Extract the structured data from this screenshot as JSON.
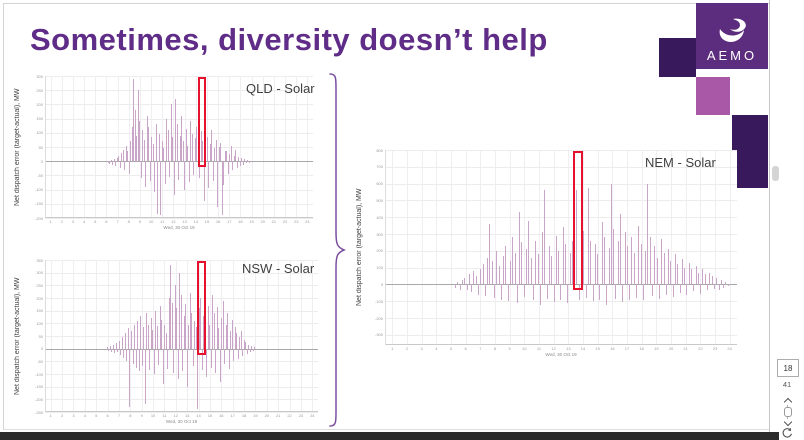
{
  "slide": {
    "title": "Sometimes, diversity doesn’t help"
  },
  "logo": {
    "text": "AEMO"
  },
  "colors": {
    "title": "#5f2c87",
    "bar": "#c9a5c8",
    "highlight": "#e8112d",
    "brace": "#7b4fa0",
    "logo_main": "#5c2d7e",
    "logo_dark": "#38195c",
    "logo_light": "#a958a8"
  },
  "icons": {
    "logo_mark": "aemo-swirl-icon",
    "scroll_up": "chevron-up-icon",
    "scroll_down": "chevron-down-icon",
    "refresh": "refresh-icon"
  },
  "sidebar": {
    "page_current": "18",
    "page_total": "41"
  },
  "chart_data": [
    {
      "type": "bar",
      "title": "QLD - Solar",
      "ylabel": "Net dispatch error (target-actual), MW",
      "xlabel": "Wed, 30 Oct 19",
      "ylim": [
        -200,
        300
      ],
      "ytick_step": 50,
      "grid": true,
      "legend": "none",
      "xticks": [
        "1",
        "2",
        "3",
        "4",
        "5",
        "6",
        "7",
        "8",
        "9",
        "10",
        "11",
        "12",
        "13",
        "14",
        "15",
        "16",
        "17",
        "18",
        "19",
        "20",
        "21",
        "22",
        "23",
        "24"
      ],
      "bars_start_frac": 0.235,
      "bars_end_frac": 0.765,
      "highlight": {
        "frac": 0.586,
        "width": 8,
        "meaning": "highlighted dispatch interval"
      },
      "values": [
        -6,
        -10,
        5,
        -14,
        8,
        -18,
        12,
        20,
        -25,
        30,
        40,
        -30,
        55,
        35,
        -45,
        70,
        120,
        290,
        180,
        90,
        250,
        140,
        -60,
        110,
        75,
        -90,
        160,
        120,
        -70,
        85,
        60,
        -110,
        130,
        -185,
        95,
        -190,
        70,
        45,
        -80,
        150,
        110,
        -55,
        200,
        85,
        -120,
        220,
        130,
        -65,
        90,
        160,
        70,
        -100,
        115,
        55,
        -75,
        140,
        95,
        -50,
        80,
        120,
        90,
        -60,
        105,
        70,
        -140,
        55,
        85,
        -95,
        60,
        110,
        -70,
        45,
        75,
        -160,
        50,
        65,
        -190,
        -85,
        35,
        35,
        -45,
        25,
        55,
        -30,
        20,
        40,
        -25,
        15,
        -18,
        10,
        -12,
        8,
        -8,
        5,
        -5
      ]
    },
    {
      "type": "bar",
      "title": "NSW - Solar",
      "ylabel": "Net dispatch error (target-actual), MW",
      "xlabel": "Wed, 30 Oct 19",
      "ylim": [
        -250,
        350
      ],
      "ytick_step": 50,
      "grid": true,
      "legend": "none",
      "xticks": [
        "1",
        "2",
        "3",
        "4",
        "5",
        "6",
        "7",
        "8",
        "9",
        "10",
        "11",
        "12",
        "13",
        "14",
        "15",
        "16",
        "17",
        "18",
        "19",
        "20",
        "21",
        "22",
        "23",
        "24"
      ],
      "bars_start_frac": 0.227,
      "bars_end_frac": 0.777,
      "highlight": {
        "frac": 0.575,
        "width": 9,
        "meaning": "highlighted dispatch interval"
      },
      "values": [
        5,
        -8,
        10,
        -12,
        15,
        -18,
        22,
        -15,
        30,
        -25,
        45,
        -35,
        60,
        -50,
        80,
        -230,
        70,
        -60,
        95,
        -75,
        110,
        -90,
        130,
        -70,
        85,
        -220,
        140,
        95,
        -85,
        120,
        75,
        -100,
        150,
        90,
        -65,
        170,
        115,
        -140,
        95,
        60,
        -80,
        200,
        330,
        180,
        -95,
        250,
        160,
        -120,
        300,
        210,
        -90,
        130,
        175,
        -150,
        95,
        220,
        140,
        -70,
        110,
        85,
        -240,
        160,
        200,
        -85,
        130,
        245,
        -110,
        170,
        95,
        -75,
        210,
        140,
        -95,
        165,
        80,
        -130,
        120,
        190,
        -60,
        95,
        140,
        -80,
        70,
        115,
        -50,
        85,
        60,
        -40,
        45,
        70,
        -30,
        35,
        25,
        -20,
        15,
        -12,
        10,
        -8,
        6,
        -5
      ]
    },
    {
      "type": "bar",
      "title": "NEM - Solar",
      "ylabel": "Net dispatch error (target-actual), MW",
      "xlabel": "Wed, 30 Oct 19",
      "ylim": [
        -360,
        800
      ],
      "ytick_step": 100,
      "ytick_min": -300,
      "grid": true,
      "legend": "none",
      "xticks": [
        "1",
        "2",
        "3",
        "4",
        "5",
        "6",
        "7",
        "8",
        "9",
        "10",
        "11",
        "12",
        "13",
        "14",
        "15",
        "16",
        "17",
        "18",
        "19",
        "20",
        "21",
        "22",
        "23",
        "24"
      ],
      "bars_start_frac": 0.199,
      "bars_end_frac": 0.98,
      "highlight": {
        "frac": 0.548,
        "width": 10,
        "meaning": "highlighted dispatch interval"
      },
      "values": [
        -20,
        15,
        -30,
        25,
        40,
        -35,
        60,
        -45,
        80,
        50,
        -60,
        90,
        120,
        -70,
        160,
        360,
        140,
        -80,
        200,
        110,
        -90,
        170,
        230,
        -100,
        140,
        280,
        190,
        -110,
        430,
        250,
        -75,
        210,
        380,
        160,
        -95,
        260,
        180,
        -120,
        310,
        560,
        -85,
        230,
        170,
        -105,
        290,
        200,
        -90,
        340,
        240,
        -110,
        190,
        260,
        755,
        560,
        -95,
        210,
        320,
        -80,
        575,
        260,
        -100,
        240,
        180,
        -90,
        370,
        280,
        -120,
        220,
        600,
        330,
        -85,
        260,
        420,
        -105,
        310,
        230,
        -95,
        280,
        190,
        -80,
        350,
        240,
        -90,
        200,
        600,
        280,
        -70,
        230,
        160,
        -85,
        270,
        190,
        -60,
        210,
        140,
        -75,
        180,
        120,
        -50,
        150,
        100,
        -60,
        130,
        90,
        -40,
        110,
        70,
        -55,
        90,
        60,
        -35,
        70,
        50,
        -25,
        40,
        -30,
        25,
        -20,
        15,
        -10
      ]
    }
  ]
}
